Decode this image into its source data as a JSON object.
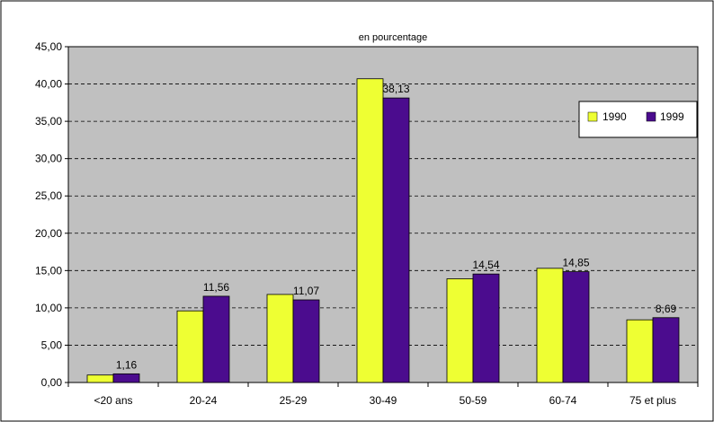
{
  "chart_data": {
    "type": "bar",
    "title": "en pourcentage",
    "xlabel": "",
    "ylabel": "",
    "ylim": [
      0,
      45
    ],
    "yticks": [
      "0,00",
      "5,00",
      "10,00",
      "15,00",
      "20,00",
      "25,00",
      "30,00",
      "35,00",
      "40,00",
      "45,00"
    ],
    "ytick_values": [
      0,
      5,
      10,
      15,
      20,
      25,
      30,
      35,
      40,
      45
    ],
    "grid": "horizontal dashed",
    "legend_position": "right",
    "categories": [
      "<20 ans",
      "20-24",
      "25-29",
      "30-49",
      "50-59",
      "60-74",
      "75 et plus"
    ],
    "series": [
      {
        "name": "1990",
        "color": "#EEFF33",
        "values": [
          1.0,
          9.6,
          11.8,
          40.7,
          13.9,
          15.3,
          8.4
        ]
      },
      {
        "name": "1999",
        "color": "#4B0C8E",
        "values": [
          1.16,
          11.56,
          11.07,
          38.13,
          14.54,
          14.85,
          8.69
        ]
      }
    ],
    "data_labels": [
      "1,16",
      "11,56",
      "11,07",
      "38,13",
      "14,54",
      "14,85",
      "8,69"
    ]
  },
  "colors": {
    "plot_background": "#C0C0C0",
    "border": "#000000"
  }
}
